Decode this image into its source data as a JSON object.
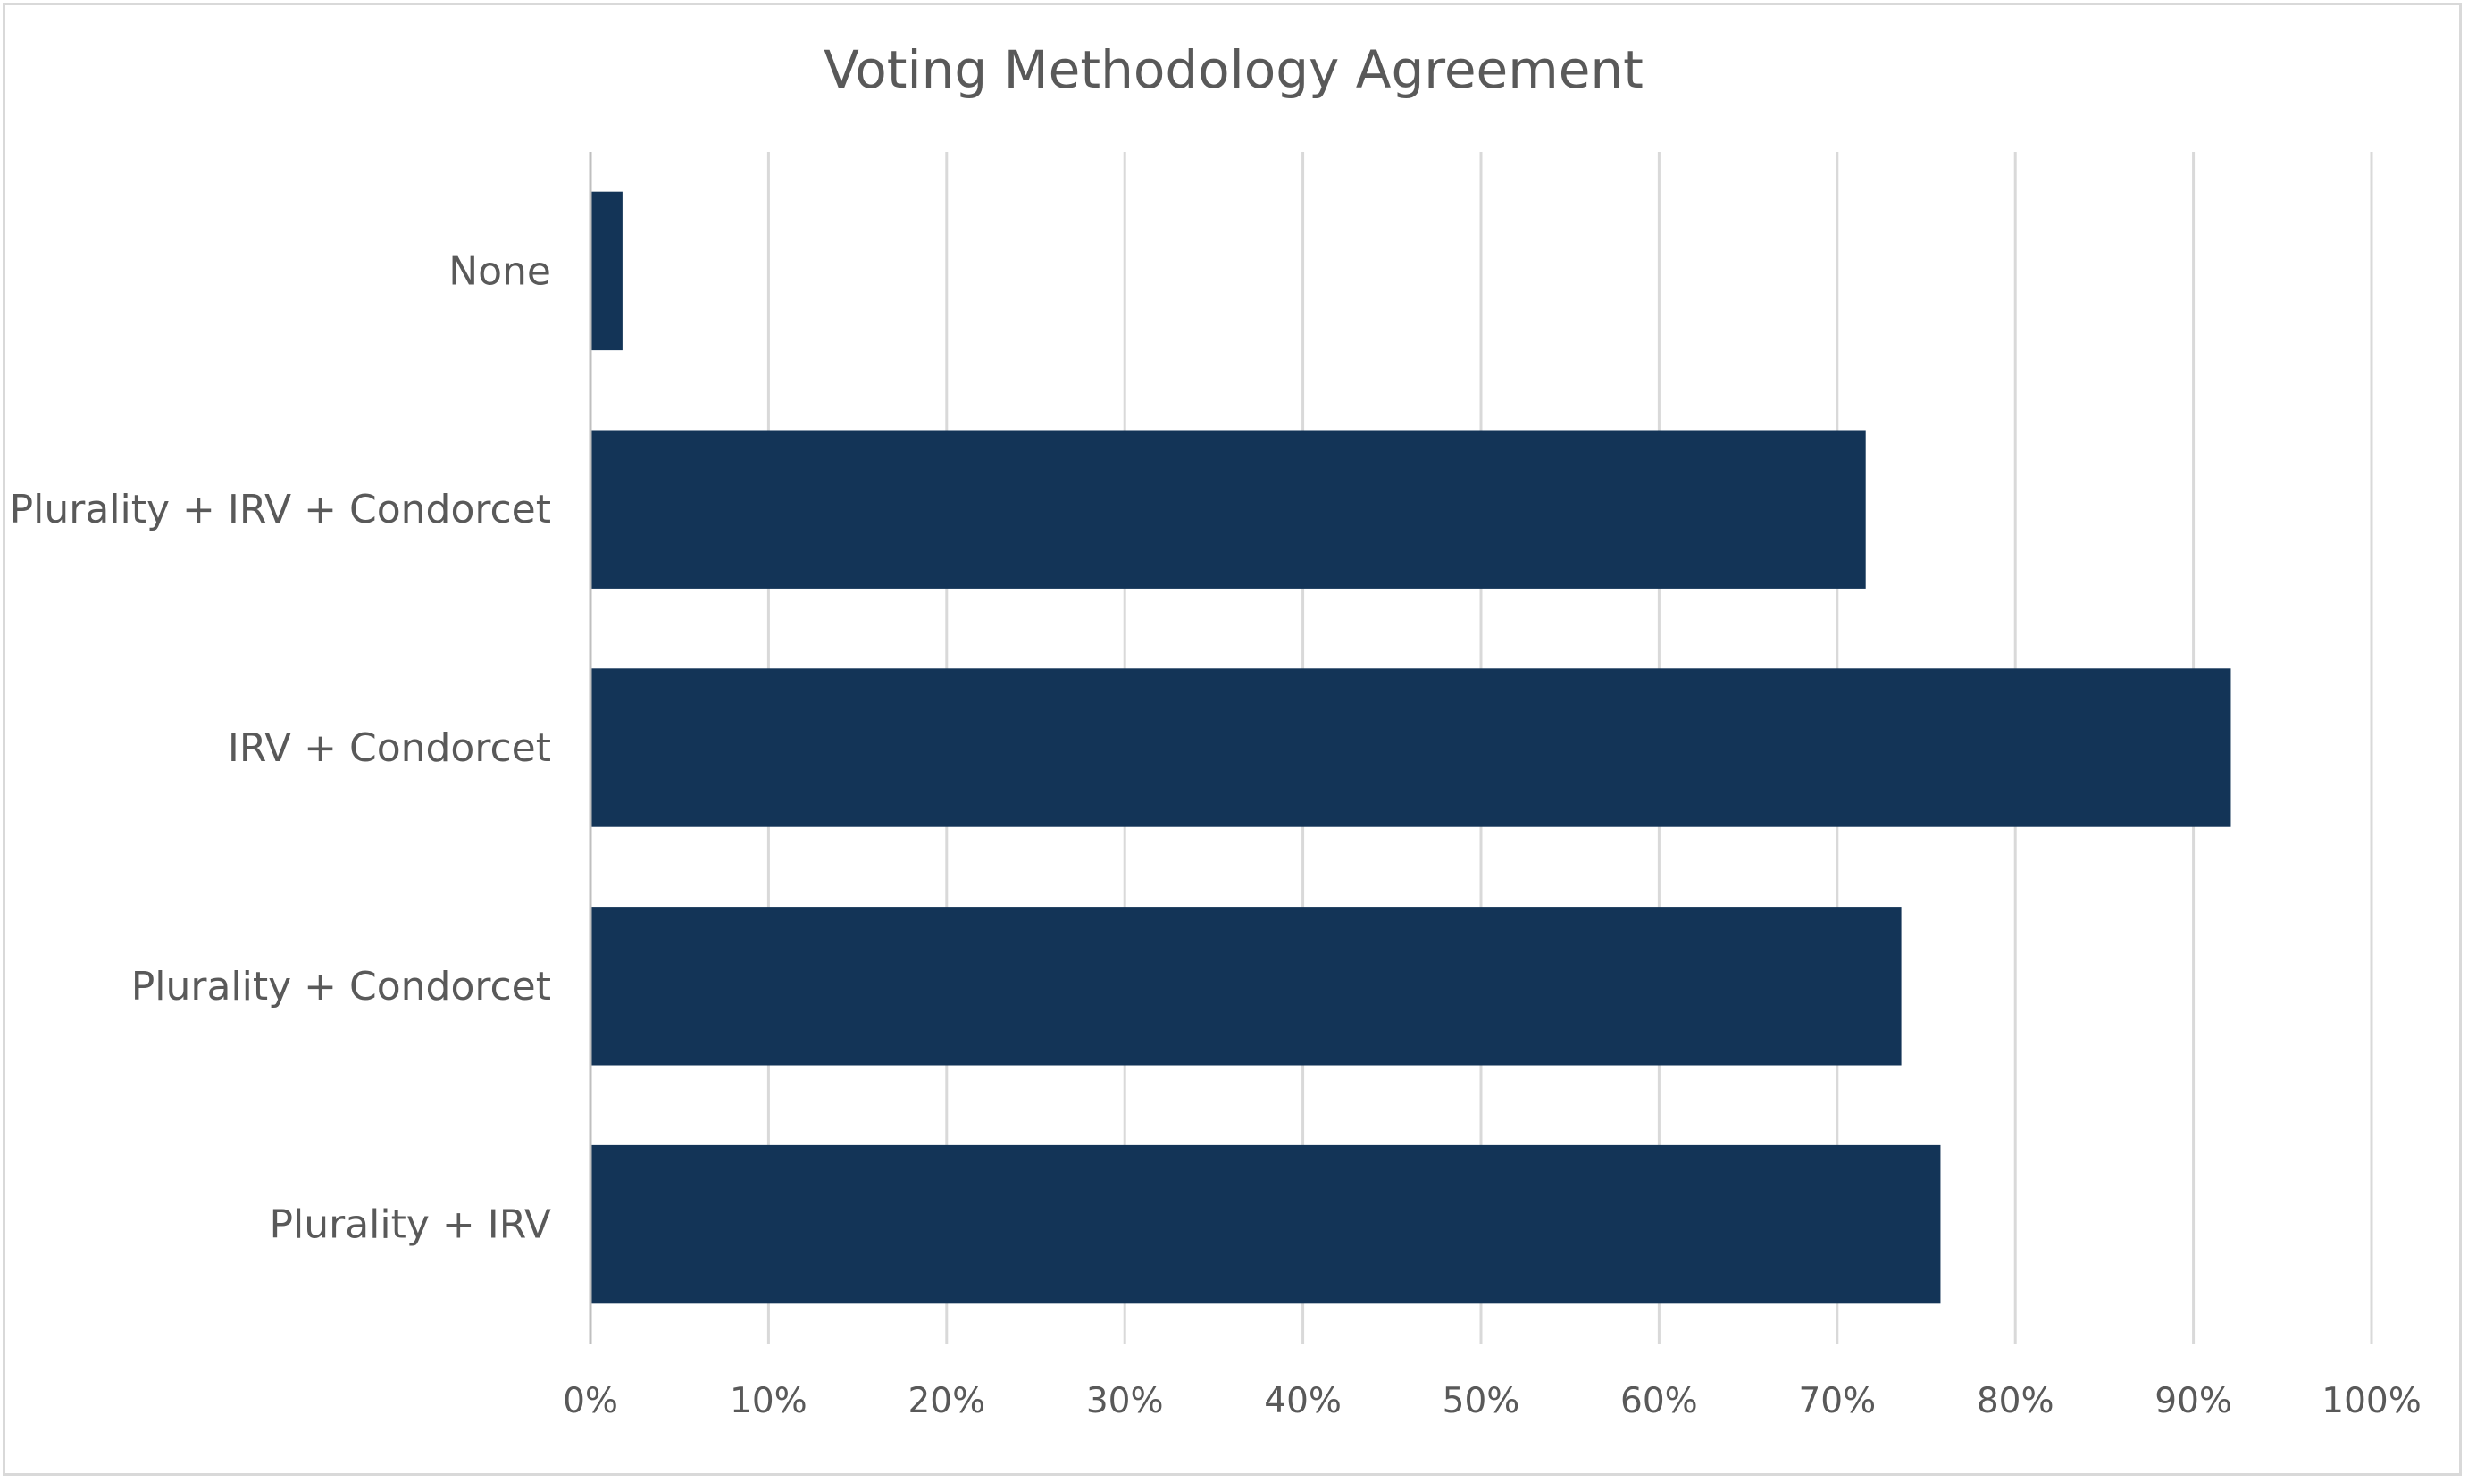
{
  "chart_data": {
    "type": "bar",
    "orientation": "horizontal",
    "title": "Voting Methodology Agreement",
    "categories": [
      "None",
      "Plurality + IRV + Condorcet",
      "IRV + Condorcet",
      "Plurality + Condorcet",
      "Plurality + IRV"
    ],
    "values": [
      1.8,
      71.6,
      92.1,
      73.6,
      75.8
    ],
    "xlabel": "",
    "ylabel": "",
    "xlim": [
      0,
      100
    ],
    "x_ticks": [
      "0%",
      "10%",
      "20%",
      "30%",
      "40%",
      "50%",
      "60%",
      "70%",
      "80%",
      "90%",
      "100%"
    ],
    "grid": true,
    "legend": "none",
    "bar_color": "#133457"
  }
}
